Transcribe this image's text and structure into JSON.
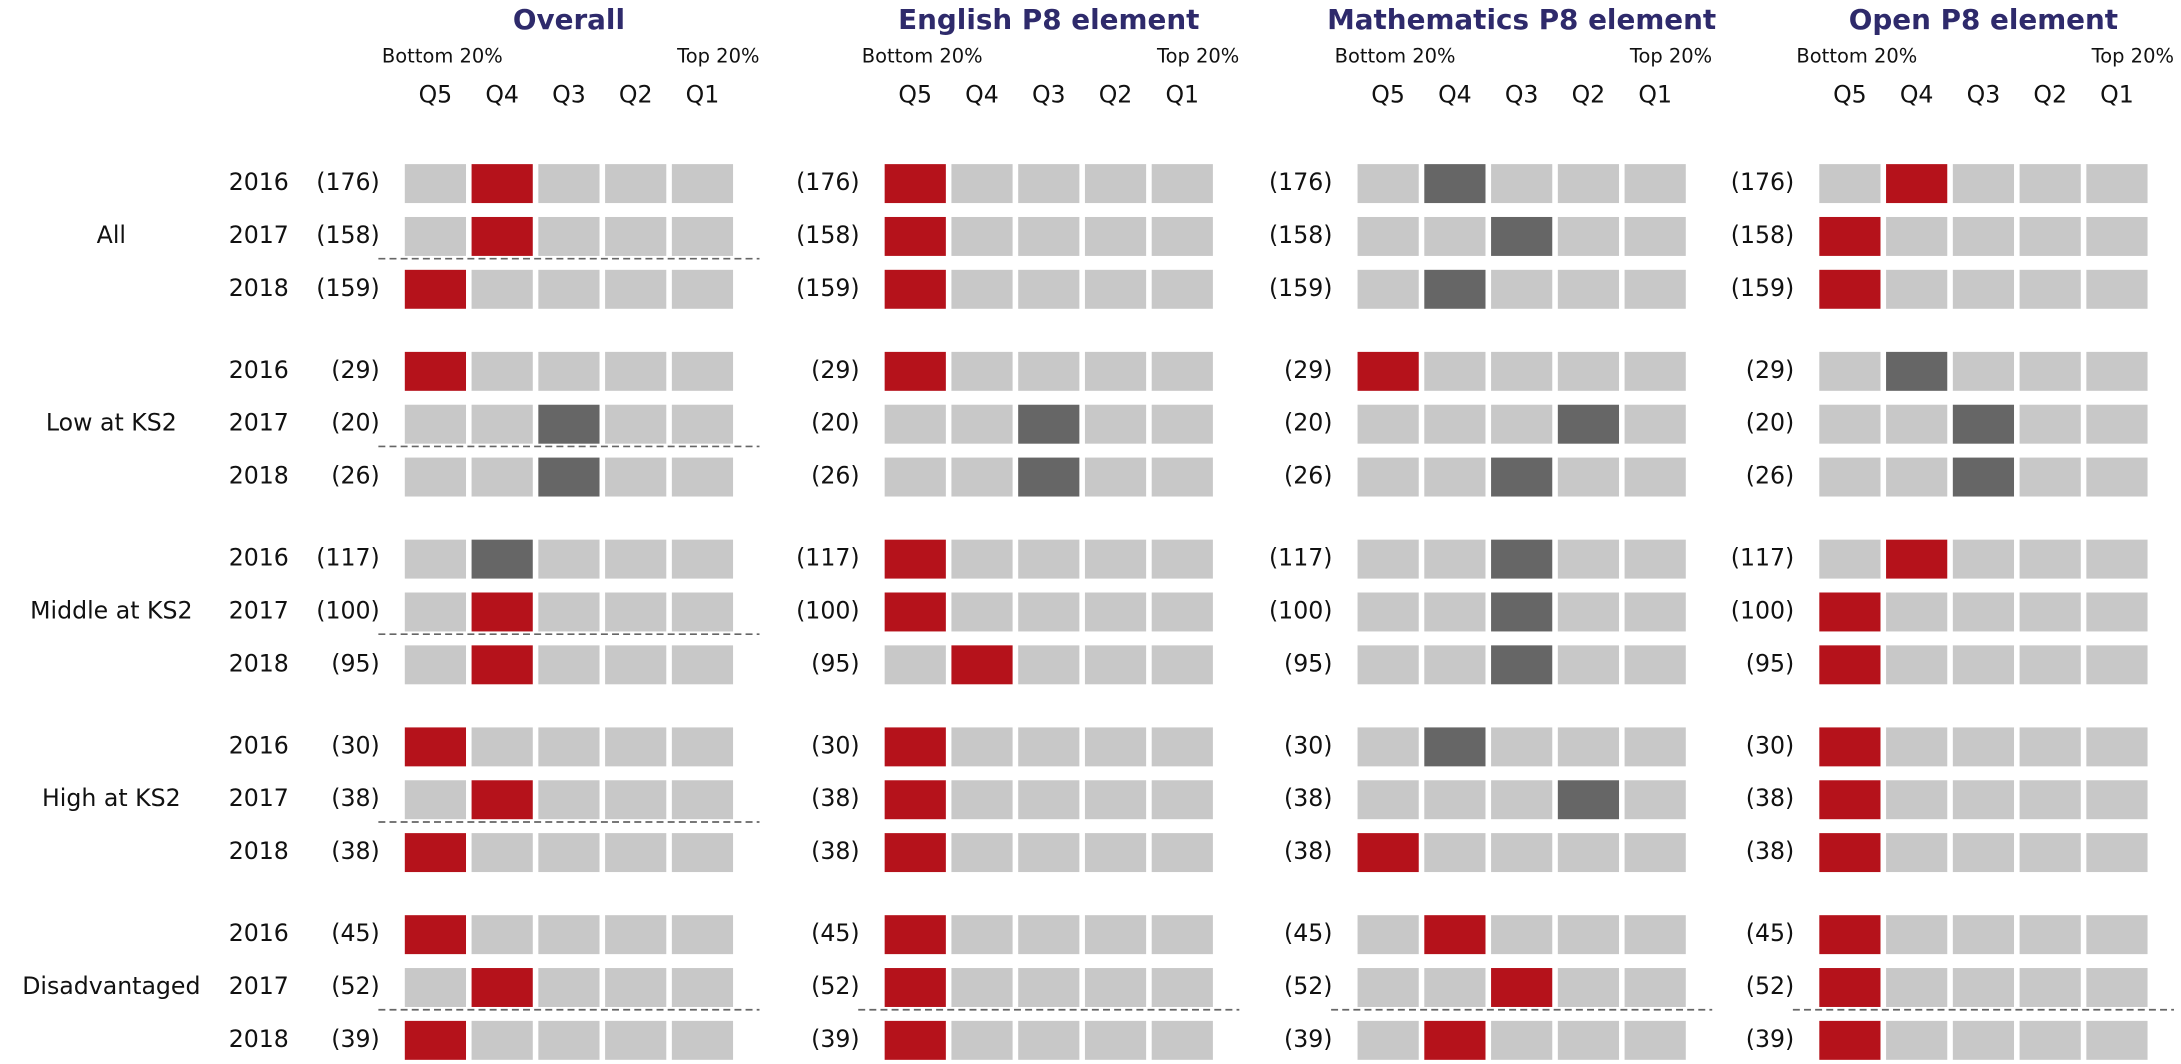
{
  "panels": [
    {
      "title": "Overall"
    },
    {
      "title": "English P8 element"
    },
    {
      "title": "Mathematics P8 element"
    },
    {
      "title": "Open P8 element"
    }
  ],
  "bottom_label": "Bottom 20%",
  "top_label": "Top 20%",
  "quintiles": [
    "Q5",
    "Q4",
    "Q3",
    "Q2",
    "Q1"
  ],
  "cell_color": "#c8c8c8",
  "groups": [
    {
      "name": "All",
      "dashed_panels": [
        0
      ],
      "rows": [
        {
          "year": "2016",
          "n": "(176)",
          "cells": [
            {
              "q": "Q4",
              "color": "#b5121b"
            },
            {
              "q": "Q5",
              "color": "#b5121b"
            },
            {
              "q": "Q4",
              "color": "#666666"
            },
            {
              "q": "Q4",
              "color": "#b5121b"
            }
          ]
        },
        {
          "year": "2017",
          "n": "(158)",
          "cells": [
            {
              "q": "Q4",
              "color": "#b5121b"
            },
            {
              "q": "Q5",
              "color": "#b5121b"
            },
            {
              "q": "Q3",
              "color": "#666666"
            },
            {
              "q": "Q5",
              "color": "#b5121b"
            }
          ]
        },
        {
          "year": "2018",
          "n": "(159)",
          "cells": [
            {
              "q": "Q5",
              "color": "#b5121b"
            },
            {
              "q": "Q5",
              "color": "#b5121b"
            },
            {
              "q": "Q4",
              "color": "#666666"
            },
            {
              "q": "Q5",
              "color": "#b5121b"
            }
          ]
        }
      ]
    },
    {
      "name": "Low at KS2",
      "dashed_panels": [
        0
      ],
      "rows": [
        {
          "year": "2016",
          "n": "(29)",
          "cells": [
            {
              "q": "Q5",
              "color": "#b5121b"
            },
            {
              "q": "Q5",
              "color": "#b5121b"
            },
            {
              "q": "Q5",
              "color": "#b5121b"
            },
            {
              "q": "Q4",
              "color": "#666666"
            }
          ]
        },
        {
          "year": "2017",
          "n": "(20)",
          "cells": [
            {
              "q": "Q3",
              "color": "#666666"
            },
            {
              "q": "Q3",
              "color": "#666666"
            },
            {
              "q": "Q2",
              "color": "#666666"
            },
            {
              "q": "Q3",
              "color": "#666666"
            }
          ]
        },
        {
          "year": "2018",
          "n": "(26)",
          "cells": [
            {
              "q": "Q3",
              "color": "#666666"
            },
            {
              "q": "Q3",
              "color": "#666666"
            },
            {
              "q": "Q3",
              "color": "#666666"
            },
            {
              "q": "Q3",
              "color": "#666666"
            }
          ]
        }
      ]
    },
    {
      "name": "Middle at KS2",
      "dashed_panels": [
        0
      ],
      "rows": [
        {
          "year": "2016",
          "n": "(117)",
          "cells": [
            {
              "q": "Q4",
              "color": "#666666"
            },
            {
              "q": "Q5",
              "color": "#b5121b"
            },
            {
              "q": "Q3",
              "color": "#666666"
            },
            {
              "q": "Q4",
              "color": "#b5121b"
            }
          ]
        },
        {
          "year": "2017",
          "n": "(100)",
          "cells": [
            {
              "q": "Q4",
              "color": "#b5121b"
            },
            {
              "q": "Q5",
              "color": "#b5121b"
            },
            {
              "q": "Q3",
              "color": "#666666"
            },
            {
              "q": "Q5",
              "color": "#b5121b"
            }
          ]
        },
        {
          "year": "2018",
          "n": "(95)",
          "cells": [
            {
              "q": "Q4",
              "color": "#b5121b"
            },
            {
              "q": "Q4",
              "color": "#b5121b"
            },
            {
              "q": "Q3",
              "color": "#666666"
            },
            {
              "q": "Q5",
              "color": "#b5121b"
            }
          ]
        }
      ]
    },
    {
      "name": "High at KS2",
      "dashed_panels": [
        0
      ],
      "rows": [
        {
          "year": "2016",
          "n": "(30)",
          "cells": [
            {
              "q": "Q5",
              "color": "#b5121b"
            },
            {
              "q": "Q5",
              "color": "#b5121b"
            },
            {
              "q": "Q4",
              "color": "#666666"
            },
            {
              "q": "Q5",
              "color": "#b5121b"
            }
          ]
        },
        {
          "year": "2017",
          "n": "(38)",
          "cells": [
            {
              "q": "Q4",
              "color": "#b5121b"
            },
            {
              "q": "Q5",
              "color": "#b5121b"
            },
            {
              "q": "Q2",
              "color": "#666666"
            },
            {
              "q": "Q5",
              "color": "#b5121b"
            }
          ]
        },
        {
          "year": "2018",
          "n": "(38)",
          "cells": [
            {
              "q": "Q5",
              "color": "#b5121b"
            },
            {
              "q": "Q5",
              "color": "#b5121b"
            },
            {
              "q": "Q5",
              "color": "#b5121b"
            },
            {
              "q": "Q5",
              "color": "#b5121b"
            }
          ]
        }
      ]
    },
    {
      "name": "Disadvantaged",
      "dashed_panels": [
        0,
        1,
        2,
        3
      ],
      "rows": [
        {
          "year": "2016",
          "n": "(45)",
          "cells": [
            {
              "q": "Q5",
              "color": "#b5121b"
            },
            {
              "q": "Q5",
              "color": "#b5121b"
            },
            {
              "q": "Q4",
              "color": "#b5121b"
            },
            {
              "q": "Q5",
              "color": "#b5121b"
            }
          ]
        },
        {
          "year": "2017",
          "n": "(52)",
          "cells": [
            {
              "q": "Q4",
              "color": "#b5121b"
            },
            {
              "q": "Q5",
              "color": "#b5121b"
            },
            {
              "q": "Q3",
              "color": "#b5121b"
            },
            {
              "q": "Q5",
              "color": "#b5121b"
            }
          ]
        },
        {
          "year": "2018",
          "n": "(39)",
          "cells": [
            {
              "q": "Q5",
              "color": "#b5121b"
            },
            {
              "q": "Q5",
              "color": "#b5121b"
            },
            {
              "q": "Q4",
              "color": "#b5121b"
            },
            {
              "q": "Q5",
              "color": "#b5121b"
            }
          ]
        }
      ]
    }
  ]
}
